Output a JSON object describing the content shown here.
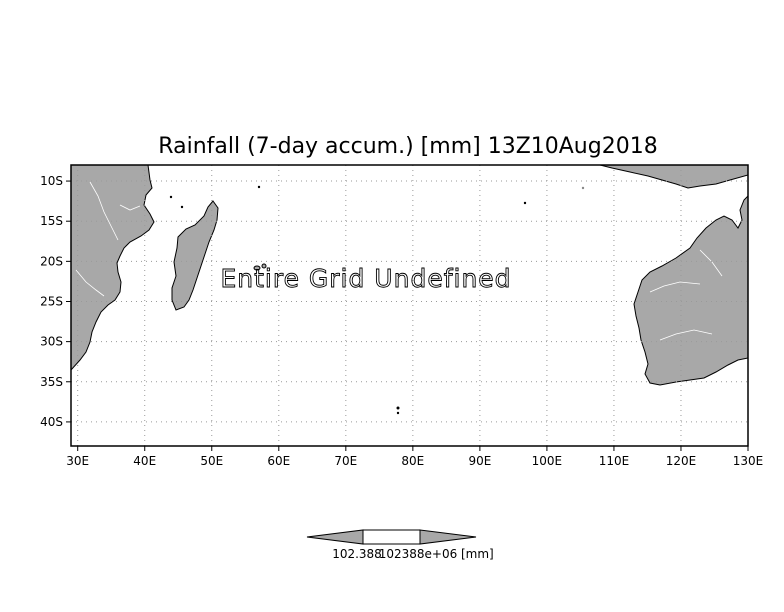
{
  "title": "Rainfall (7-day accum.) [mm] 13Z10Aug2018",
  "overlay_message": "Entire Grid Undefined",
  "map": {
    "lon_range": [
      29,
      130
    ],
    "lat_range": [
      -43,
      -8
    ],
    "grid": true,
    "land_color": "#a8a8a8",
    "x_ticks": [
      {
        "lon": 30,
        "label": "30E"
      },
      {
        "lon": 40,
        "label": "40E"
      },
      {
        "lon": 50,
        "label": "50E"
      },
      {
        "lon": 60,
        "label": "60E"
      },
      {
        "lon": 70,
        "label": "70E"
      },
      {
        "lon": 80,
        "label": "80E"
      },
      {
        "lon": 90,
        "label": "90E"
      },
      {
        "lon": 100,
        "label": "100E"
      },
      {
        "lon": 110,
        "label": "110E"
      },
      {
        "lon": 120,
        "label": "120E"
      },
      {
        "lon": 130,
        "label": "130E"
      }
    ],
    "y_ticks": [
      {
        "lat": -10,
        "label": "10S"
      },
      {
        "lat": -15,
        "label": "15S"
      },
      {
        "lat": -20,
        "label": "20S"
      },
      {
        "lat": -25,
        "label": "25S"
      },
      {
        "lat": -30,
        "label": "30S"
      },
      {
        "lat": -35,
        "label": "35S"
      },
      {
        "lat": -40,
        "label": "40S"
      }
    ]
  },
  "colorbar": {
    "label_left": "102.388",
    "label_right": "102388e+06",
    "unit": "[mm]"
  }
}
